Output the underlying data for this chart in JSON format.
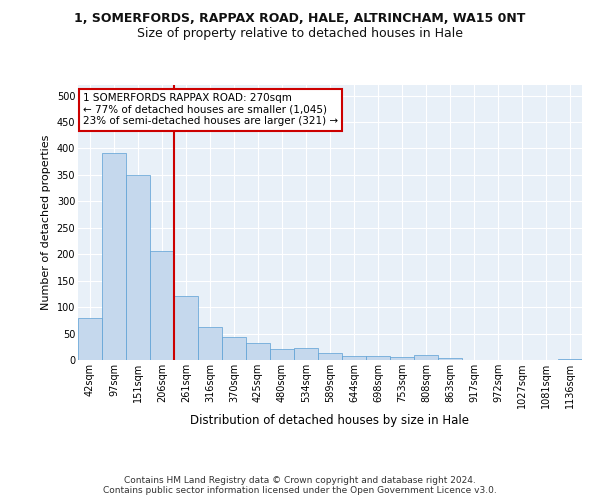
{
  "title1": "1, SOMERFORDS, RAPPAX ROAD, HALE, ALTRINCHAM, WA15 0NT",
  "title2": "Size of property relative to detached houses in Hale",
  "xlabel": "Distribution of detached houses by size in Hale",
  "ylabel": "Number of detached properties",
  "categories": [
    "42sqm",
    "97sqm",
    "151sqm",
    "206sqm",
    "261sqm",
    "316sqm",
    "370sqm",
    "425sqm",
    "480sqm",
    "534sqm",
    "589sqm",
    "644sqm",
    "698sqm",
    "753sqm",
    "808sqm",
    "863sqm",
    "917sqm",
    "972sqm",
    "1027sqm",
    "1081sqm",
    "1136sqm"
  ],
  "values": [
    79,
    391,
    350,
    206,
    121,
    63,
    44,
    32,
    21,
    23,
    13,
    7,
    7,
    6,
    10,
    3,
    0,
    0,
    0,
    0,
    2
  ],
  "bar_color": "#c5d8ed",
  "bar_edge_color": "#5a9fd4",
  "vline_after_bin": 3,
  "vline_color": "#cc0000",
  "annotation_text": "1 SOMERFORDS RAPPAX ROAD: 270sqm\n← 77% of detached houses are smaller (1,045)\n23% of semi-detached houses are larger (321) →",
  "annotation_box_color": "#ffffff",
  "annotation_box_edge": "#cc0000",
  "footer": "Contains HM Land Registry data © Crown copyright and database right 2024.\nContains public sector information licensed under the Open Government Licence v3.0.",
  "ylim": [
    0,
    520
  ],
  "yticks": [
    0,
    50,
    100,
    150,
    200,
    250,
    300,
    350,
    400,
    450,
    500
  ],
  "bg_color": "#e8f0f8",
  "grid_color": "#ffffff",
  "title1_fontsize": 9,
  "title2_fontsize": 9,
  "ylabel_fontsize": 8,
  "xlabel_fontsize": 8.5,
  "tick_fontsize": 7,
  "footer_fontsize": 6.5
}
